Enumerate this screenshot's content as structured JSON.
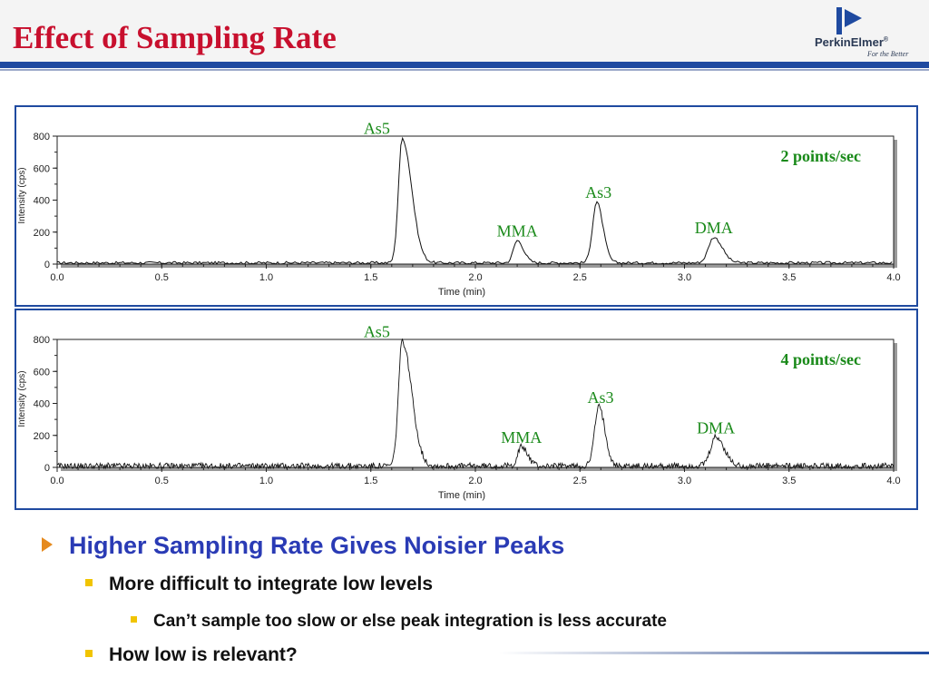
{
  "slide": {
    "title": "Effect of Sampling Rate",
    "logo_text": "PerkinElmer",
    "logo_reg": "®",
    "logo_tagline": "For the Better",
    "colors": {
      "title": "#c8102e",
      "accent_blue": "#1f4aa0",
      "bullet_blue": "#2a3bb5",
      "annotation_green": "#1a8a1a",
      "arrow_orange": "#e58a1f",
      "square_yellow": "#f1c400"
    }
  },
  "bullets": {
    "level1": "Higher Sampling Rate Gives Noisier Peaks",
    "level2_a": "More difficult to integrate low levels",
    "level3_a": "Can’t sample too slow or else peak integration is less accurate",
    "level2_b": "How low is relevant?"
  },
  "chart_data": [
    {
      "type": "line",
      "rate_label": "2 points/sec",
      "xlabel": "Time (min)",
      "ylabel": "Intensity (cps)",
      "xlim": [
        0.0,
        4.0
      ],
      "ylim": [
        0,
        800
      ],
      "xticks": [
        "0.0",
        "0.5",
        "1.0",
        "1.5",
        "2.0",
        "2.5",
        "3.0",
        "3.5",
        "4.0"
      ],
      "yticks": [
        "0",
        "200",
        "400",
        "600",
        "800"
      ],
      "peaks": [
        {
          "name": "As5",
          "time": 1.65,
          "height": 780
        },
        {
          "name": "MMA",
          "time": 2.2,
          "height": 140
        },
        {
          "name": "As3",
          "time": 2.58,
          "height": 380
        },
        {
          "name": "DMA",
          "time": 3.14,
          "height": 160
        }
      ],
      "noise_amplitude": 8
    },
    {
      "type": "line",
      "rate_label": "4 points/sec",
      "xlabel": "Time (min)",
      "ylabel": "Intensity (cps)",
      "xlim": [
        0.0,
        4.0
      ],
      "ylim": [
        0,
        800
      ],
      "xticks": [
        "0.0",
        "0.5",
        "1.0",
        "1.5",
        "2.0",
        "2.5",
        "3.0",
        "3.5",
        "4.0"
      ],
      "yticks": [
        "0",
        "200",
        "400",
        "600",
        "800"
      ],
      "peaks": [
        {
          "name": "As5",
          "time": 1.65,
          "height": 780
        },
        {
          "name": "MMA",
          "time": 2.22,
          "height": 120
        },
        {
          "name": "As3",
          "time": 2.59,
          "height": 370
        },
        {
          "name": "DMA",
          "time": 3.15,
          "height": 180
        }
      ],
      "noise_amplitude": 20
    }
  ]
}
